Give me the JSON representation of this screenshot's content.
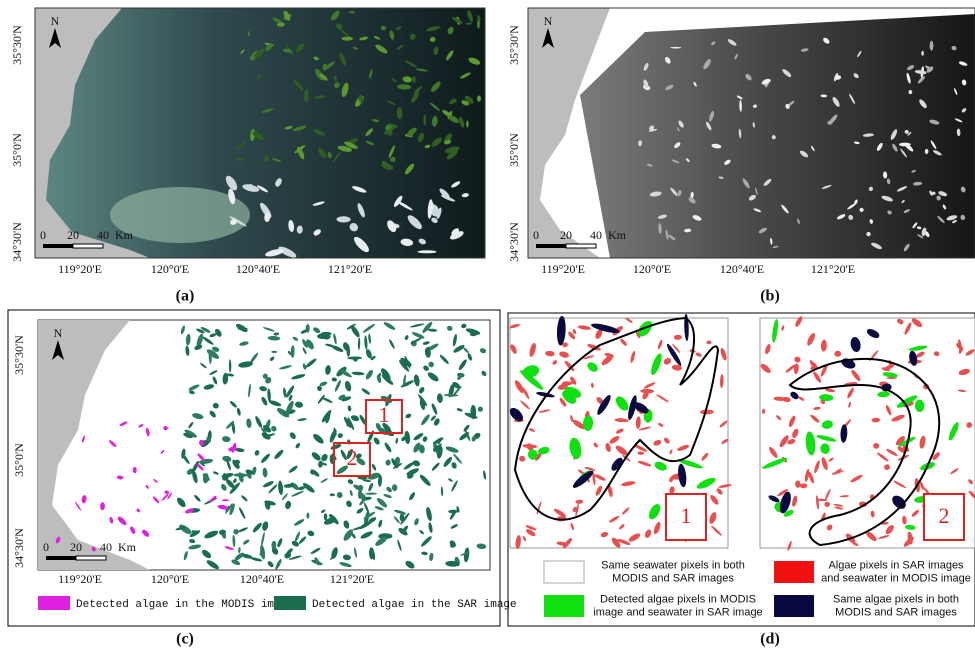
{
  "panels": [
    {
      "north": "N",
      "lat_labels": [
        "35°30'N",
        "35°0'N",
        "34°30'N"
      ],
      "lon_labels": [
        "119°20'E",
        "120°0'E",
        "120°40'E",
        "121°20'E"
      ],
      "scale_labels": [
        "0",
        "20",
        "40",
        "Km"
      ],
      "caption": "(a)"
    },
    {
      "north": "N",
      "lat_labels": [
        "35°30'N",
        "35°0'N",
        "34°30'N"
      ],
      "lon_labels": [
        "119°20'E",
        "120°0'E",
        "120°40'E",
        "121°20'E"
      ],
      "scale_labels": [
        "0",
        "20",
        "40",
        "Km"
      ],
      "caption": "(b)"
    },
    {
      "north": "N",
      "lat_labels": [
        "35°30'N",
        "35°0'N",
        "34°30'N"
      ],
      "lon_labels": [
        "119°20'E",
        "120°0'E",
        "120°40'E",
        "121°20'E"
      ],
      "scale_labels": [
        "0",
        "20",
        "40",
        "Km"
      ],
      "boxes": [
        "1",
        "2"
      ],
      "legend": [
        "Detected algae in the MODIS image",
        "Detected algae in the SAR image"
      ],
      "caption": "(c)"
    },
    {
      "boxes": [
        "1",
        "2"
      ],
      "legend": [
        "Same seawater pixels in both\nMODIS and SAR images",
        "Algae pixels in SAR images\nand seawater in MODIS image",
        "Detected algae pixels in MODIS\nimage and seawater in SAR image",
        "Same algae pixels in both\nMODIS and SAR images"
      ],
      "caption": "(d)"
    }
  ]
}
